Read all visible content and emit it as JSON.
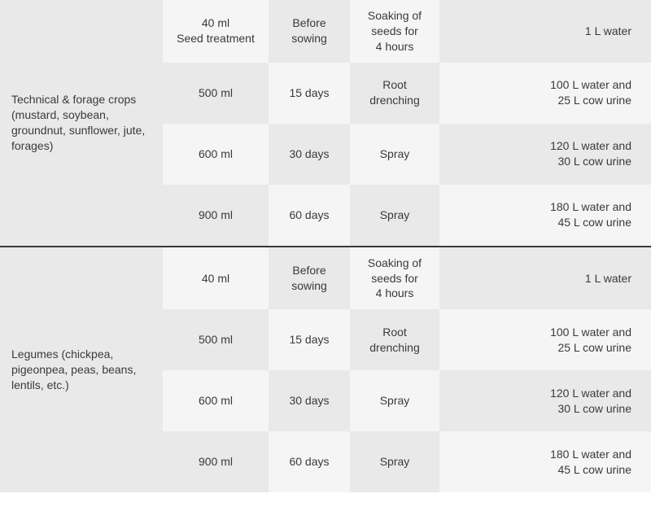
{
  "colors": {
    "bg_dark": "#e9e9e9",
    "bg_light": "#f5f5f5",
    "text": "#3a3a3a",
    "divider": "#3a3a3a"
  },
  "groups": [
    {
      "label": "Technical & forage crops (mustard, soybean, groundnut, sunflower, jute, forages)",
      "rows": [
        {
          "amount": "40 ml\nSeed treatment",
          "timing": "Before sowing",
          "method": "Soaking of seeds for\n4 hours",
          "diluent": "1 L water"
        },
        {
          "amount": "500 ml",
          "timing": "15 days",
          "method": "Root drenching",
          "diluent": "100 L water and\n25 L cow urine"
        },
        {
          "amount": "600 ml",
          "timing": "30 days",
          "method": "Spray",
          "diluent": "120 L water and\n30 L cow urine"
        },
        {
          "amount": "900 ml",
          "timing": "60 days",
          "method": "Spray",
          "diluent": "180 L water and\n45 L cow urine"
        }
      ]
    },
    {
      "label": "Legumes (chickpea, pigeonpea, peas, beans, lentils, etc.)",
      "rows": [
        {
          "amount": "40 ml",
          "timing": "Before sowing",
          "method": "Soaking of seeds for\n4 hours",
          "diluent": "1 L water"
        },
        {
          "amount": "500 ml",
          "timing": "15 days",
          "method": "Root drenching",
          "diluent": "100 L water and\n25 L cow urine"
        },
        {
          "amount": "600 ml",
          "timing": "30 days",
          "method": "Spray",
          "diluent": "120 L water and\n30 L cow urine"
        },
        {
          "amount": "900 ml",
          "timing": "60 days",
          "method": "Spray",
          "diluent": "180 L water and\n45 L cow urine"
        }
      ]
    }
  ]
}
